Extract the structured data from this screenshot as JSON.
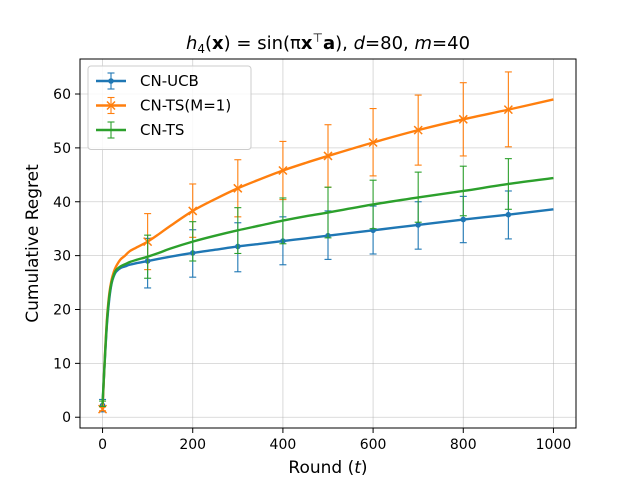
{
  "chart_data": {
    "type": "line",
    "title": "h₄(x) = sin(πx⊤a), d=80, m=40",
    "title_parts": {
      "func": "h",
      "sub": "4",
      "arg_open": "(",
      "arg_var": "x",
      "equals": ") = sin(π",
      "sup": "⊤",
      "vec_a": "a",
      "close": ")",
      "d_label": "d",
      "d_value": "=80",
      "m_label": "m",
      "m_value": "=40"
    },
    "xlabel": "Round (t)",
    "xlabel_parts": {
      "text": "Round (",
      "var": "t",
      "close": ")"
    },
    "ylabel": "Cumulative Regret",
    "xlim": [
      -50,
      1050
    ],
    "ylim": [
      -2,
      66.5
    ],
    "xticks": [
      0,
      200,
      400,
      600,
      800,
      1000
    ],
    "yticks": [
      0,
      10,
      20,
      30,
      40,
      50,
      60
    ],
    "grid": true,
    "legend_position": "top-left",
    "x": [
      0,
      5,
      10,
      15,
      20,
      25,
      30,
      40,
      50,
      60,
      75,
      100,
      125,
      150,
      200,
      250,
      300,
      350,
      400,
      450,
      500,
      600,
      700,
      800,
      900,
      1000
    ],
    "series": [
      {
        "name": "CN-UCB",
        "color": "#1f77b4",
        "marker": "dot",
        "values": [
          2.2,
          10.5,
          17.5,
          22.0,
          24.8,
          26.2,
          27.0,
          27.7,
          28.0,
          28.3,
          28.6,
          29.0,
          29.4,
          29.8,
          30.5,
          31.1,
          31.7,
          32.2,
          32.7,
          33.2,
          33.7,
          34.7,
          35.7,
          36.7,
          37.6,
          38.6
        ],
        "error_x": [
          0,
          100,
          200,
          300,
          400,
          500,
          600,
          700,
          800,
          900
        ],
        "error_y": [
          2.2,
          29.0,
          30.5,
          31.7,
          32.7,
          33.7,
          34.7,
          35.7,
          36.7,
          37.6
        ],
        "error_lo": [
          1.0,
          24.0,
          26.0,
          27.0,
          28.3,
          29.3,
          30.3,
          31.2,
          32.4,
          33.1
        ],
        "error_hi": [
          3.3,
          33.2,
          34.8,
          36.1,
          37.2,
          38.3,
          39.2,
          40.0,
          41.0,
          42.0
        ]
      },
      {
        "name": "CN-TS(M=1)",
        "color": "#ff7f0e",
        "marker": "x",
        "values": [
          1.5,
          11.0,
          18.5,
          23.0,
          25.5,
          27.0,
          28.0,
          29.3,
          30.0,
          30.8,
          31.5,
          32.6,
          34.0,
          35.5,
          38.3,
          40.5,
          42.5,
          44.2,
          45.8,
          47.2,
          48.5,
          51.0,
          53.3,
          55.3,
          57.1,
          59.0
        ],
        "error_x": [
          0,
          100,
          200,
          300,
          400,
          500,
          600,
          700,
          800,
          900
        ],
        "error_y": [
          1.5,
          32.6,
          38.3,
          42.5,
          45.8,
          48.5,
          51.0,
          53.3,
          55.3,
          57.1
        ],
        "error_lo": [
          1.2,
          27.4,
          33.4,
          37.2,
          40.4,
          42.7,
          44.8,
          46.8,
          48.5,
          50.2
        ],
        "error_hi": [
          1.9,
          37.8,
          43.3,
          47.8,
          51.2,
          54.3,
          57.3,
          59.8,
          62.1,
          64.1
        ]
      },
      {
        "name": "CN-TS",
        "color": "#2ca02c",
        "marker": "none",
        "values": [
          2.5,
          10.8,
          18.0,
          22.5,
          25.0,
          26.4,
          27.3,
          28.0,
          28.4,
          28.8,
          29.2,
          29.8,
          30.5,
          31.3,
          32.6,
          33.7,
          34.7,
          35.6,
          36.5,
          37.3,
          38.0,
          39.5,
          40.8,
          42.0,
          43.3,
          44.4
        ],
        "error_x": [
          0,
          100,
          200,
          300,
          400,
          500,
          600,
          700,
          800,
          900
        ],
        "error_y": [
          2.5,
          29.8,
          32.6,
          34.7,
          36.5,
          38.0,
          39.5,
          40.8,
          42.0,
          43.3
        ],
        "error_lo": [
          2.0,
          25.8,
          29.0,
          30.4,
          32.2,
          33.3,
          35.0,
          36.2,
          37.4,
          38.6
        ],
        "error_hi": [
          3.0,
          33.8,
          36.3,
          38.9,
          40.7,
          42.7,
          44.0,
          45.5,
          46.6,
          48.0
        ]
      }
    ]
  }
}
